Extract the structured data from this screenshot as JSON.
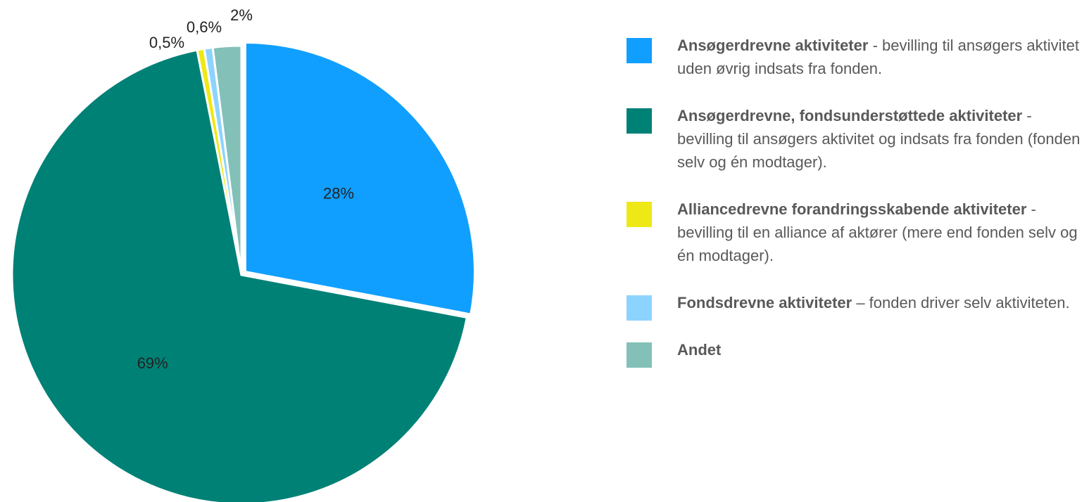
{
  "chart_data": {
    "type": "pie",
    "categories": [
      "Ansøgerdrevne aktiviteter",
      "Ansøgerdrevne, fondsunderstøttede aktiviteter",
      "Alliancedrevne forandringsskabende aktiviteter",
      "Fondsdrevne aktiviteter",
      "Andet"
    ],
    "descriptions": [
      "- bevilling til ansøgers aktivitet uden øvrig indsats fra fonden.",
      "- bevilling til ansøgers aktivitet og indsats fra fonden (fonden selv og én modtager).",
      "- bevilling til en alliance af aktører (mere end fonden selv og én modtager).",
      "– fonden driver selv aktiviteten.",
      null
    ],
    "values": [
      28,
      69,
      0.5,
      0.6,
      2
    ],
    "value_labels": [
      "28%",
      "69%",
      "0,5%",
      "0,6%",
      "2%"
    ],
    "colors": [
      "#119fff",
      "#008176",
      "#eee816",
      "#8dd3ff",
      "#82c0b8"
    ],
    "legend": "right"
  }
}
